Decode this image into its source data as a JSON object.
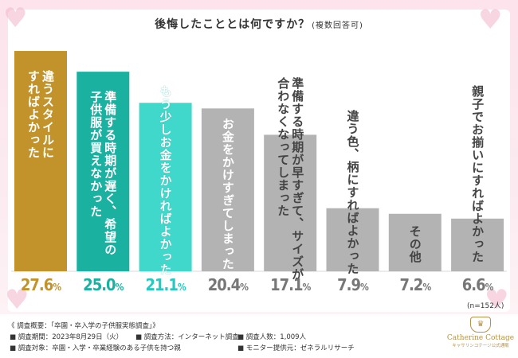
{
  "title": "後悔したこととは何ですか？",
  "subtitle": "(複数回答可)",
  "sample_size": "(n=152人)",
  "colors": {
    "gold": "#c2932a",
    "teal": "#1bb1a0",
    "aqua": "#41d8cc",
    "gray": "#b3b3b3"
  },
  "chart_data": {
    "type": "bar",
    "categories": [
      "違うスタイルにすればよかった",
      "準備する時期が遅く、希望の子供服が買えなかった",
      "もう少しお金をかければよかった",
      "お金をかけすぎてしまった",
      "準備する時期が早すぎて、サイズが合わなくなってしまった",
      "違う色、柄にすればよかった",
      "その他",
      "親子でお揃いにすればよかった"
    ],
    "values": [
      27.6,
      25.0,
      21.1,
      20.4,
      17.1,
      7.9,
      7.2,
      6.6
    ],
    "value_labels": [
      "27.6",
      "25.0",
      "21.1",
      "20.4",
      "17.1",
      "7.9",
      "7.2",
      "6.6"
    ],
    "unit": "%",
    "ylim": [
      0,
      29
    ]
  },
  "bar_labels": [
    "違うスタイルに\nすればよかった",
    "準備する時期が遅く、希望の\n子供服が買えなかった",
    "もう少しお金をかければよかった",
    "お金をかけすぎてしまった",
    "準備する時期が早すぎて、サイズが\n合わなくなってしまった",
    "違う色、柄にすればよかった",
    "その他",
    "親子でお揃いにすればよかった"
  ],
  "bar_colors": [
    "gold",
    "teal",
    "aqua",
    "gray",
    "gray",
    "gray",
    "gray",
    "gray"
  ],
  "footer": {
    "overview": "《 調査概要：「卒園・卒入学の子供服実態調査」》",
    "period": "■ 調査期間：2023年8月29日（火）",
    "method": "■ 調査方法：インターネット調査",
    "count": "■ 調査人数：1,009人",
    "target": "■ 調査対象：卒園・入学・卒業経験のある子供を持つ親",
    "provider": "■ モニター提供元：ゼネラルリサーチ"
  },
  "logo": {
    "brand": "Catherine Cottage",
    "sub": "キャサリンコテージ公式通販"
  }
}
